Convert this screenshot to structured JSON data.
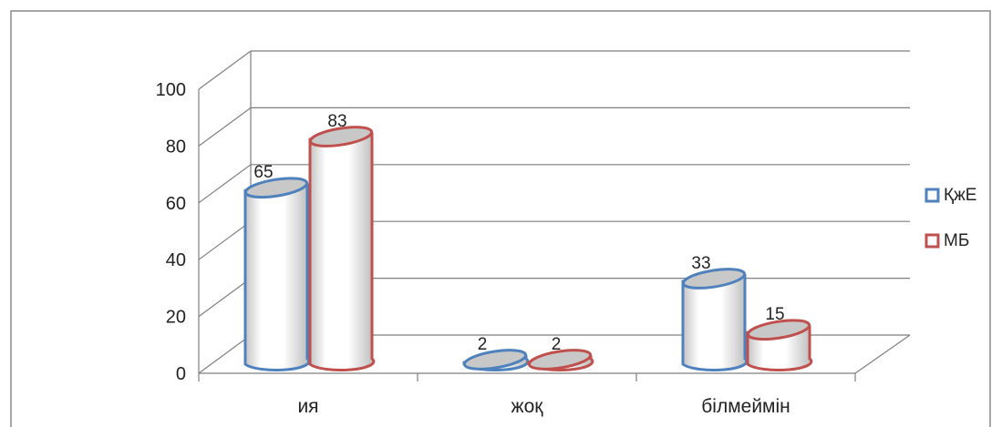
{
  "chart_data": {
    "type": "bar",
    "categories": [
      "ия",
      "жоқ",
      "білмеймін"
    ],
    "series": [
      {
        "name": "ҚжЕ",
        "values": [
          65,
          2,
          33
        ]
      },
      {
        "name": "МБ",
        "values": [
          83,
          2,
          15
        ]
      }
    ],
    "y_ticks": [
      "0",
      "20",
      "40",
      "60",
      "80",
      "100"
    ],
    "ylim": [
      0,
      100
    ],
    "grid": true,
    "legend_position": "right",
    "colors": {
      "s0": "#4f81bd",
      "s1": "#c0504d",
      "grid": "#7f7f7f",
      "frame": "#888888"
    }
  }
}
